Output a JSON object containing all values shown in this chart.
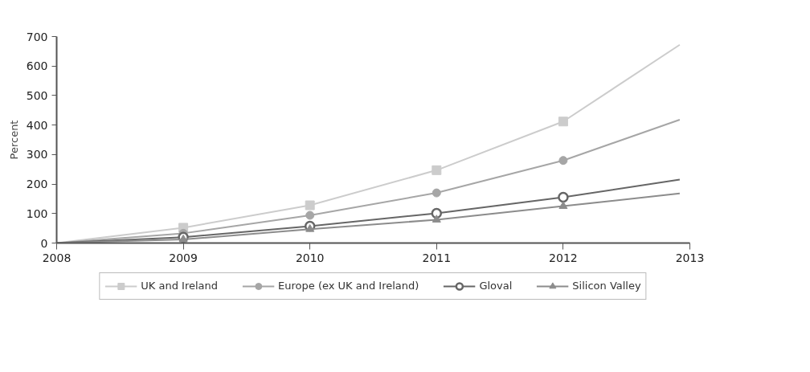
{
  "chart_data": {
    "type": "line",
    "ylabel": "Percent",
    "x": [
      2008,
      2009,
      2010,
      2011,
      2012,
      2012.92
    ],
    "xlim": [
      2008,
      2013
    ],
    "xticks": [
      2008,
      2009,
      2010,
      2011,
      2012,
      2013
    ],
    "ylim": [
      0,
      700
    ],
    "yticks": [
      0,
      100,
      200,
      300,
      400,
      500,
      600,
      700
    ],
    "grid": false,
    "legend": "bottom",
    "series": [
      {
        "name": "UK and Ireland",
        "color": "#cccccc",
        "marker": "square",
        "values": [
          0,
          52,
          128,
          247,
          412,
          672
        ]
      },
      {
        "name": "Europe (ex UK and Ireland)",
        "color": "#a6a6a6",
        "marker": "circle",
        "values": [
          0,
          33,
          94,
          170,
          280,
          418
        ]
      },
      {
        "name": "Gloval",
        "color": "#666666",
        "marker": "hollow_circle",
        "values": [
          0,
          20,
          57,
          101,
          155,
          215
        ]
      },
      {
        "name": "Silicon Valley",
        "color": "#8c8c8c",
        "marker": "triangle",
        "values": [
          0,
          12,
          47,
          79,
          125,
          168
        ]
      }
    ]
  }
}
